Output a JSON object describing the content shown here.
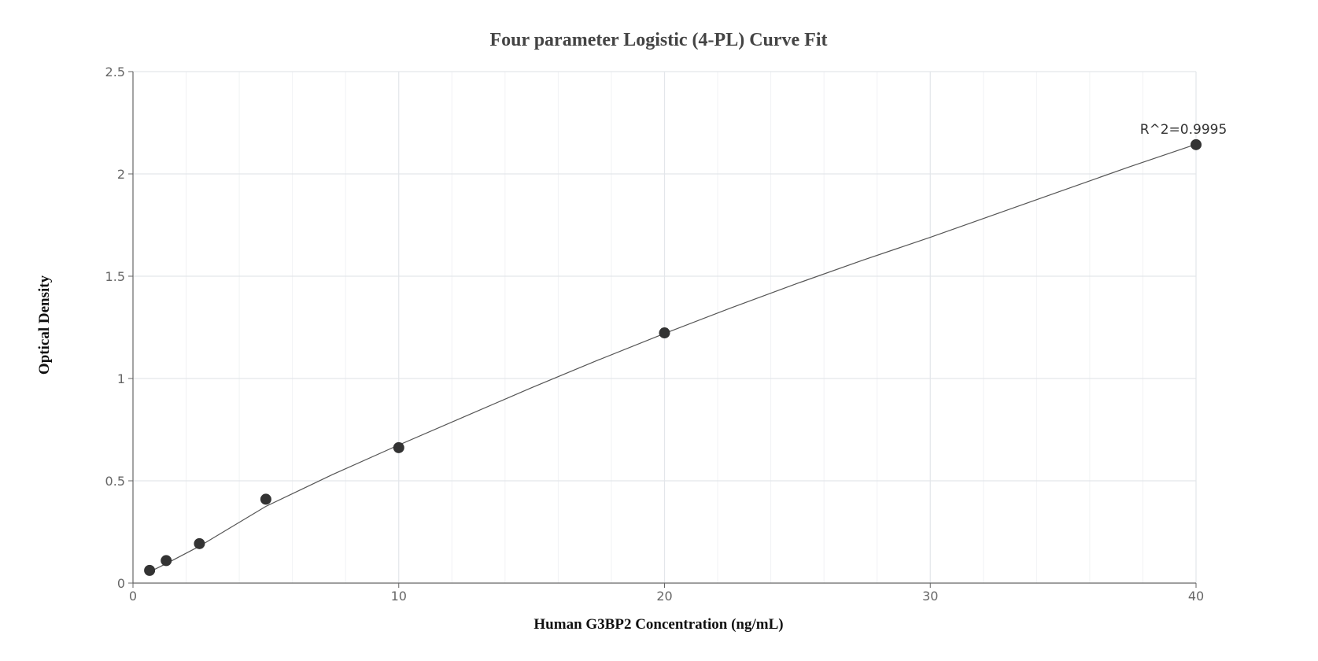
{
  "chart_data": {
    "type": "scatter",
    "title": "Four parameter Logistic (4-PL) Curve Fit",
    "xlabel": "Human G3BP2 Concentration (ng/mL)",
    "ylabel": "Optical Density",
    "xlim": [
      0,
      40
    ],
    "ylim": [
      0,
      2.5
    ],
    "x_ticks": [
      0,
      10,
      20,
      30,
      40
    ],
    "y_ticks": [
      0,
      0.5,
      1,
      1.5,
      2,
      2.5
    ],
    "grid": true,
    "legend": "none",
    "points": [
      {
        "x": 0.625,
        "y": 0.062
      },
      {
        "x": 1.25,
        "y": 0.11
      },
      {
        "x": 2.5,
        "y": 0.193
      },
      {
        "x": 5,
        "y": 0.41
      },
      {
        "x": 10,
        "y": 0.662
      },
      {
        "x": 20,
        "y": 1.223
      },
      {
        "x": 40,
        "y": 2.143
      }
    ],
    "fit_curve": {
      "x": [
        0.625,
        1.25,
        2.5,
        5,
        7.5,
        10,
        12.5,
        15,
        17.5,
        20,
        22.5,
        25,
        27.5,
        30,
        32.5,
        35,
        37.5,
        40
      ],
      "y": [
        0.055,
        0.095,
        0.18,
        0.375,
        0.53,
        0.675,
        0.815,
        0.955,
        1.09,
        1.22,
        1.345,
        1.465,
        1.58,
        1.69,
        1.805,
        1.92,
        2.035,
        2.145
      ]
    },
    "annotation": {
      "text": "R^2=0.9995",
      "x": 40,
      "y": 2.143
    },
    "colors": {
      "points": "#333333",
      "curve": "#555555",
      "grid": "#e3e6ea",
      "axis": "#666666"
    }
  }
}
